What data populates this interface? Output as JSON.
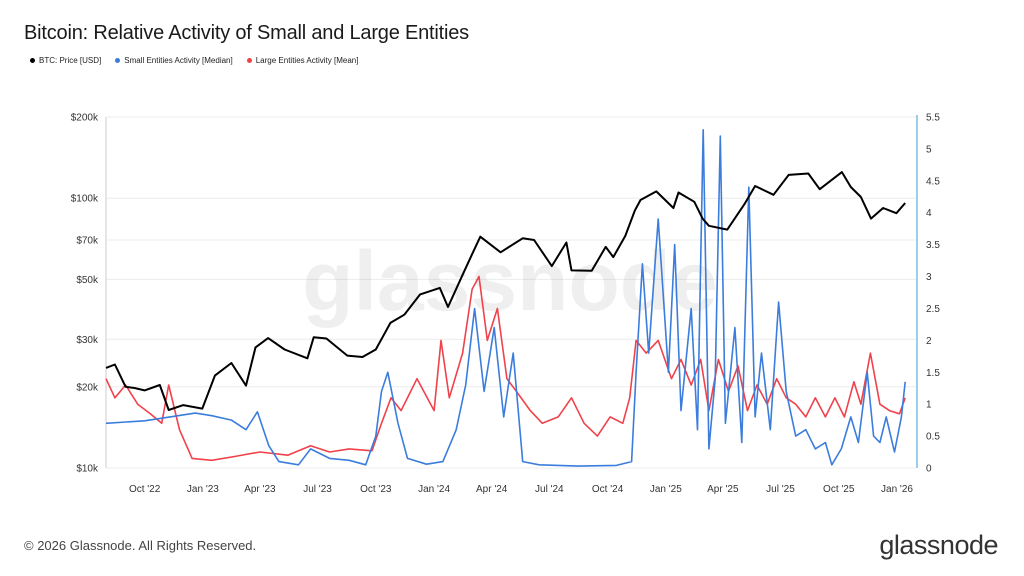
{
  "title": "Bitcoin: Relative Activity of Small and Large Entities",
  "legend": {
    "price": "BTC: Price [USD]",
    "small": "Small Entities Activity [Median]",
    "large": "Large Entities Activity [Mean]"
  },
  "colors": {
    "price": "#000000",
    "small": "#3b7ddd",
    "large": "#f0424b",
    "right_axis": "#3b9ad9"
  },
  "watermark": "glassnode",
  "footer": "© 2026 Glassnode. All Rights Reserved.",
  "brand": "glassnode",
  "chart_data": {
    "type": "line",
    "title": "Bitcoin: Relative Activity of Small and Large Entities",
    "x_range": [
      "2022-08-01",
      "2026-01-31"
    ],
    "x_ticks": [
      {
        "date": "2022-10-01",
        "label": "Oct '22"
      },
      {
        "date": "2023-01-01",
        "label": "Jan '23"
      },
      {
        "date": "2023-04-01",
        "label": "Apr '23"
      },
      {
        "date": "2023-07-01",
        "label": "Jul '23"
      },
      {
        "date": "2023-10-01",
        "label": "Oct '23"
      },
      {
        "date": "2024-01-01",
        "label": "Jan '24"
      },
      {
        "date": "2024-04-01",
        "label": "Apr '24"
      },
      {
        "date": "2024-07-01",
        "label": "Jul '24"
      },
      {
        "date": "2024-10-01",
        "label": "Oct '24"
      },
      {
        "date": "2025-01-01",
        "label": "Jan '25"
      },
      {
        "date": "2025-04-01",
        "label": "Apr '25"
      },
      {
        "date": "2025-07-01",
        "label": "Jul '25"
      },
      {
        "date": "2025-10-01",
        "label": "Oct '25"
      },
      {
        "date": "2026-01-01",
        "label": "Jan '26"
      }
    ],
    "y_left": {
      "scale": "log",
      "range": [
        10000,
        200000
      ],
      "ticks": [
        {
          "v": 10000,
          "label": "$10k"
        },
        {
          "v": 20000,
          "label": "$20k"
        },
        {
          "v": 30000,
          "label": "$30k"
        },
        {
          "v": 50000,
          "label": "$50k"
        },
        {
          "v": 70000,
          "label": "$70k"
        },
        {
          "v": 100000,
          "label": "$100k"
        },
        {
          "v": 200000,
          "label": "$200k"
        }
      ]
    },
    "y_right": {
      "scale": "linear",
      "range": [
        0,
        5.5
      ],
      "ticks": [
        {
          "v": 0,
          "label": "0"
        },
        {
          "v": 0.5,
          "label": "0.5"
        },
        {
          "v": 1,
          "label": "1"
        },
        {
          "v": 1.5,
          "label": "1.5"
        },
        {
          "v": 2,
          "label": "2"
        },
        {
          "v": 2.5,
          "label": "2.5"
        },
        {
          "v": 3,
          "label": "3"
        },
        {
          "v": 3.5,
          "label": "3.5"
        },
        {
          "v": 4,
          "label": "4"
        },
        {
          "v": 4.5,
          "label": "4.5"
        },
        {
          "v": 5,
          "label": "5"
        },
        {
          "v": 5.5,
          "label": "5.5"
        }
      ]
    },
    "grid": "horizontal",
    "legend_position": "top-left",
    "series": [
      {
        "name": "BTC: Price [USD]",
        "axis": "left",
        "color": "#000000",
        "points": [
          [
            "2022-08-01",
            23500
          ],
          [
            "2022-08-15",
            24200
          ],
          [
            "2022-09-01",
            20000
          ],
          [
            "2022-09-15",
            19800
          ],
          [
            "2022-10-01",
            19400
          ],
          [
            "2022-10-25",
            20300
          ],
          [
            "2022-11-08",
            16400
          ],
          [
            "2022-12-01",
            17100
          ],
          [
            "2022-12-31",
            16600
          ],
          [
            "2023-01-20",
            22000
          ],
          [
            "2023-02-15",
            24500
          ],
          [
            "2023-03-10",
            20200
          ],
          [
            "2023-03-25",
            28000
          ],
          [
            "2023-04-14",
            30300
          ],
          [
            "2023-05-10",
            27500
          ],
          [
            "2023-06-15",
            25500
          ],
          [
            "2023-06-25",
            30500
          ],
          [
            "2023-07-15",
            30200
          ],
          [
            "2023-08-17",
            26100
          ],
          [
            "2023-09-10",
            25800
          ],
          [
            "2023-10-01",
            27500
          ],
          [
            "2023-10-24",
            34500
          ],
          [
            "2023-11-15",
            37000
          ],
          [
            "2023-12-10",
            44000
          ],
          [
            "2024-01-10",
            46500
          ],
          [
            "2024-01-23",
            39500
          ],
          [
            "2024-02-15",
            52000
          ],
          [
            "2024-03-01",
            62000
          ],
          [
            "2024-03-14",
            72000
          ],
          [
            "2024-04-15",
            63000
          ],
          [
            "2024-05-20",
            71000
          ],
          [
            "2024-06-07",
            70000
          ],
          [
            "2024-07-05",
            56000
          ],
          [
            "2024-07-28",
            68500
          ],
          [
            "2024-08-05",
            54000
          ],
          [
            "2024-09-06",
            53800
          ],
          [
            "2024-09-28",
            66000
          ],
          [
            "2024-10-10",
            60500
          ],
          [
            "2024-10-29",
            72500
          ],
          [
            "2024-11-13",
            90000
          ],
          [
            "2024-11-22",
            98500
          ],
          [
            "2024-12-17",
            106000
          ],
          [
            "2025-01-13",
            92000
          ],
          [
            "2025-01-21",
            105000
          ],
          [
            "2025-02-15",
            97000
          ],
          [
            "2025-02-28",
            84000
          ],
          [
            "2025-03-10",
            79000
          ],
          [
            "2025-04-08",
            76500
          ],
          [
            "2025-05-05",
            95000
          ],
          [
            "2025-05-22",
            111000
          ],
          [
            "2025-06-20",
            103000
          ],
          [
            "2025-07-14",
            122000
          ],
          [
            "2025-08-14",
            123500
          ],
          [
            "2025-09-01",
            108000
          ],
          [
            "2025-10-06",
            125000
          ],
          [
            "2025-10-20",
            110000
          ],
          [
            "2025-11-05",
            101000
          ],
          [
            "2025-11-21",
            84000
          ],
          [
            "2025-12-10",
            92000
          ],
          [
            "2025-12-31",
            88000
          ],
          [
            "2026-01-14",
            96000
          ]
        ]
      },
      {
        "name": "Small Entities Activity [Median]",
        "axis": "right",
        "color": "#3b7ddd",
        "points": [
          [
            "2022-08-01",
            0.7
          ],
          [
            "2022-10-01",
            0.74
          ],
          [
            "2022-11-10",
            0.8
          ],
          [
            "2022-12-20",
            0.86
          ],
          [
            "2023-01-15",
            0.82
          ],
          [
            "2023-02-15",
            0.75
          ],
          [
            "2023-03-10",
            0.6
          ],
          [
            "2023-03-28",
            0.88
          ],
          [
            "2023-04-15",
            0.35
          ],
          [
            "2023-05-01",
            0.1
          ],
          [
            "2023-06-01",
            0.05
          ],
          [
            "2023-06-20",
            0.3
          ],
          [
            "2023-07-20",
            0.15
          ],
          [
            "2023-08-20",
            0.12
          ],
          [
            "2023-09-15",
            0.05
          ],
          [
            "2023-10-01",
            0.5
          ],
          [
            "2023-10-10",
            1.2
          ],
          [
            "2023-10-20",
            1.5
          ],
          [
            "2023-11-05",
            0.7
          ],
          [
            "2023-11-20",
            0.15
          ],
          [
            "2023-12-20",
            0.06
          ],
          [
            "2024-01-15",
            0.1
          ],
          [
            "2024-02-05",
            0.6
          ],
          [
            "2024-02-20",
            1.3
          ],
          [
            "2024-03-05",
            2.5
          ],
          [
            "2024-03-20",
            1.2
          ],
          [
            "2024-04-05",
            2.2
          ],
          [
            "2024-04-20",
            0.8
          ],
          [
            "2024-05-05",
            1.8
          ],
          [
            "2024-05-20",
            0.1
          ],
          [
            "2024-06-15",
            0.05
          ],
          [
            "2024-08-15",
            0.03
          ],
          [
            "2024-10-15",
            0.04
          ],
          [
            "2024-11-08",
            0.1
          ],
          [
            "2024-11-15",
            1.5
          ],
          [
            "2024-11-25",
            3.2
          ],
          [
            "2024-12-05",
            1.8
          ],
          [
            "2024-12-20",
            3.9
          ],
          [
            "2025-01-05",
            1.5
          ],
          [
            "2025-01-15",
            3.5
          ],
          [
            "2025-01-25",
            0.9
          ],
          [
            "2025-02-10",
            2.5
          ],
          [
            "2025-02-20",
            0.6
          ],
          [
            "2025-03-01",
            5.3
          ],
          [
            "2025-03-10",
            0.3
          ],
          [
            "2025-03-20",
            1.4
          ],
          [
            "2025-03-28",
            5.2
          ],
          [
            "2025-04-05",
            0.7
          ],
          [
            "2025-04-20",
            2.2
          ],
          [
            "2025-05-01",
            0.4
          ],
          [
            "2025-05-12",
            4.4
          ],
          [
            "2025-05-22",
            0.8
          ],
          [
            "2025-06-01",
            1.8
          ],
          [
            "2025-06-15",
            0.6
          ],
          [
            "2025-06-28",
            2.6
          ],
          [
            "2025-07-10",
            1.2
          ],
          [
            "2025-07-25",
            0.5
          ],
          [
            "2025-08-10",
            0.6
          ],
          [
            "2025-08-25",
            0.3
          ],
          [
            "2025-09-10",
            0.4
          ],
          [
            "2025-09-20",
            0.05
          ],
          [
            "2025-10-05",
            0.3
          ],
          [
            "2025-10-20",
            0.8
          ],
          [
            "2025-11-01",
            0.4
          ],
          [
            "2025-11-15",
            1.5
          ],
          [
            "2025-11-25",
            0.5
          ],
          [
            "2025-12-05",
            0.4
          ],
          [
            "2025-12-15",
            0.8
          ],
          [
            "2025-12-28",
            0.25
          ],
          [
            "2026-01-08",
            0.8
          ],
          [
            "2026-01-14",
            1.35
          ]
        ]
      },
      {
        "name": "Large Entities Activity [Mean]",
        "axis": "right",
        "color": "#f0424b",
        "points": [
          [
            "2022-08-01",
            1.4
          ],
          [
            "2022-08-15",
            1.1
          ],
          [
            "2022-09-01",
            1.3
          ],
          [
            "2022-09-20",
            1.0
          ],
          [
            "2022-10-10",
            0.85
          ],
          [
            "2022-10-28",
            0.7
          ],
          [
            "2022-11-08",
            1.3
          ],
          [
            "2022-11-25",
            0.6
          ],
          [
            "2022-12-15",
            0.15
          ],
          [
            "2023-01-15",
            0.12
          ],
          [
            "2023-02-20",
            0.18
          ],
          [
            "2023-04-01",
            0.25
          ],
          [
            "2023-05-15",
            0.2
          ],
          [
            "2023-06-20",
            0.35
          ],
          [
            "2023-07-20",
            0.25
          ],
          [
            "2023-08-20",
            0.3
          ],
          [
            "2023-09-25",
            0.27
          ],
          [
            "2023-10-10",
            0.7
          ],
          [
            "2023-10-25",
            1.1
          ],
          [
            "2023-11-10",
            0.9
          ],
          [
            "2023-12-05",
            1.4
          ],
          [
            "2024-01-01",
            0.9
          ],
          [
            "2024-01-12",
            2.0
          ],
          [
            "2024-01-25",
            1.1
          ],
          [
            "2024-02-15",
            1.8
          ],
          [
            "2024-03-01",
            2.8
          ],
          [
            "2024-03-12",
            3.0
          ],
          [
            "2024-03-25",
            2.0
          ],
          [
            "2024-04-10",
            2.5
          ],
          [
            "2024-04-25",
            1.4
          ],
          [
            "2024-05-10",
            1.2
          ],
          [
            "2024-06-01",
            0.9
          ],
          [
            "2024-06-20",
            0.7
          ],
          [
            "2024-07-15",
            0.8
          ],
          [
            "2024-08-05",
            1.1
          ],
          [
            "2024-08-25",
            0.7
          ],
          [
            "2024-09-15",
            0.5
          ],
          [
            "2024-10-05",
            0.8
          ],
          [
            "2024-10-25",
            0.7
          ],
          [
            "2024-11-05",
            1.1
          ],
          [
            "2024-11-15",
            2.0
          ],
          [
            "2024-12-01",
            1.8
          ],
          [
            "2024-12-20",
            2.0
          ],
          [
            "2025-01-10",
            1.4
          ],
          [
            "2025-01-25",
            1.7
          ],
          [
            "2025-02-10",
            1.3
          ],
          [
            "2025-02-25",
            1.7
          ],
          [
            "2025-03-10",
            0.9
          ],
          [
            "2025-03-25",
            1.7
          ],
          [
            "2025-04-10",
            1.2
          ],
          [
            "2025-04-25",
            1.6
          ],
          [
            "2025-05-10",
            0.9
          ],
          [
            "2025-05-25",
            1.3
          ],
          [
            "2025-06-10",
            1.0
          ],
          [
            "2025-06-25",
            1.4
          ],
          [
            "2025-07-10",
            1.1
          ],
          [
            "2025-07-25",
            1.0
          ],
          [
            "2025-08-10",
            0.8
          ],
          [
            "2025-08-25",
            1.1
          ],
          [
            "2025-09-10",
            0.8
          ],
          [
            "2025-09-25",
            1.1
          ],
          [
            "2025-10-10",
            0.8
          ],
          [
            "2025-10-25",
            1.35
          ],
          [
            "2025-11-05",
            1.0
          ],
          [
            "2025-11-20",
            1.8
          ],
          [
            "2025-12-05",
            1.0
          ],
          [
            "2025-12-20",
            0.9
          ],
          [
            "2026-01-05",
            0.85
          ],
          [
            "2026-01-14",
            1.1
          ]
        ]
      }
    ]
  }
}
